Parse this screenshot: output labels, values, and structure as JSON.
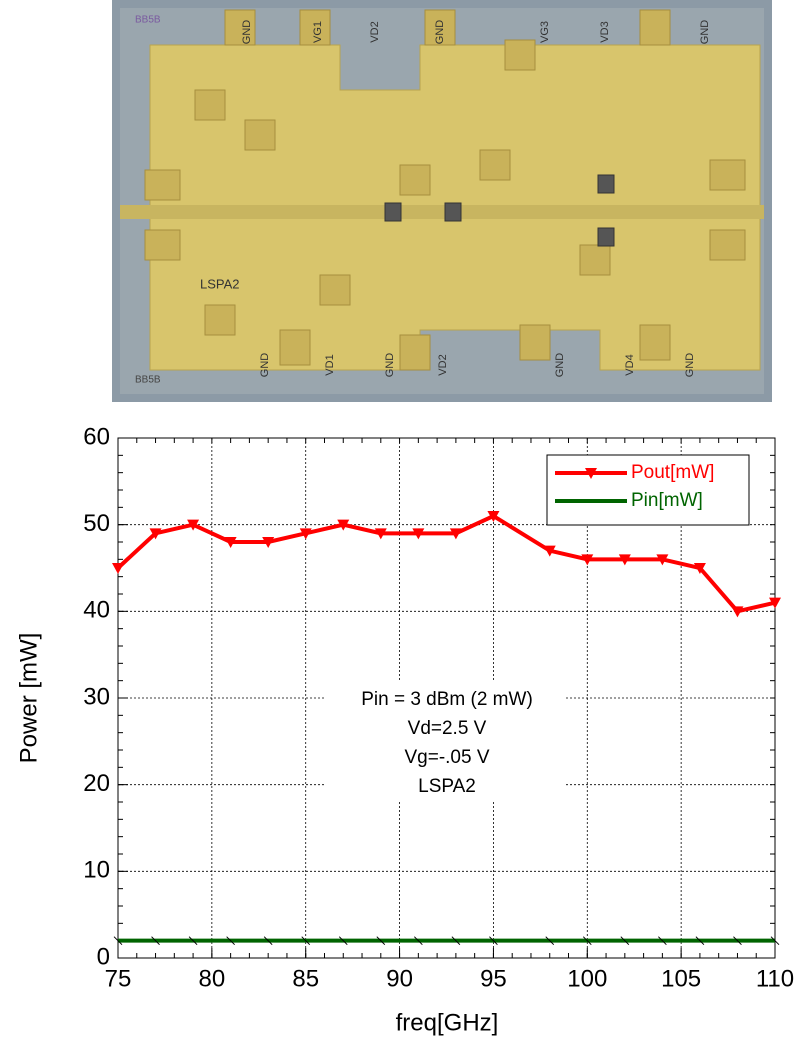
{
  "photo": {
    "corner_labels": [
      "BB5B",
      "BB5B"
    ],
    "top_labels": [
      "GND",
      "VG1",
      "VD2",
      "GND",
      "VG3",
      "VD3",
      "GND"
    ],
    "bottom_labels": [
      "GND",
      "VD1",
      "GND",
      "VD2",
      "GND",
      "VD4",
      "GND"
    ],
    "chip_name": "LSPA2"
  },
  "chart_data": {
    "type": "line",
    "x": [
      75,
      77,
      79,
      81,
      83,
      85,
      87,
      89,
      91,
      93,
      95,
      98,
      100,
      102,
      104,
      106,
      108,
      110
    ],
    "series": [
      {
        "name": "Pout[mW]",
        "color": "#ff0000",
        "values": [
          45,
          49,
          50,
          48,
          48,
          49,
          50,
          49,
          49,
          49,
          51,
          47,
          46,
          46,
          46,
          45,
          40,
          41
        ]
      },
      {
        "name": "Pin[mW]",
        "color": "#006400",
        "values": [
          2,
          2,
          2,
          2,
          2,
          2,
          2,
          2,
          2,
          2,
          2,
          2,
          2,
          2,
          2,
          2,
          2,
          2
        ]
      }
    ],
    "xlim": [
      75,
      110
    ],
    "xticks": [
      75,
      80,
      85,
      90,
      95,
      100,
      105,
      110
    ],
    "ylim": [
      0,
      60
    ],
    "yticks": [
      0,
      10,
      20,
      30,
      40,
      50,
      60
    ],
    "xlabel": "freq[GHz]",
    "ylabel": "Power [mW]",
    "annotations": [
      "Pin = 3 dBm (2 mW)",
      "Vd=2.5 V",
      "Vg=-.05 V",
      "LSPA2"
    ],
    "grid": true,
    "legend": "upper right"
  }
}
